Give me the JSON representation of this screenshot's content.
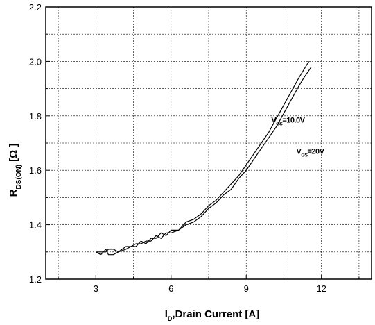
{
  "chart_data": {
    "type": "line",
    "xlabel_main": "I",
    "xlabel_sub": "D",
    "xlabel_rest": ",Drain Current [A]",
    "ylabel_main": "R",
    "ylabel_sub": "DS(ON)",
    "ylabel_rest": " [Ω ]",
    "xlim": [
      1,
      14
    ],
    "ylim": [
      1.2,
      2.2
    ],
    "x_ticks": [
      3,
      6,
      9,
      12
    ],
    "x_tick_labels": [
      "3",
      "6",
      "9",
      "12"
    ],
    "y_ticks": [
      1.2,
      1.4,
      1.6,
      1.8,
      2.0,
      2.2
    ],
    "y_tick_labels": [
      "1.2",
      "1.4",
      "1.6",
      "1.8",
      "2.0",
      "2.2"
    ],
    "grid": true,
    "series": [
      {
        "name": "",
        "values_x": [
          3.0,
          3.2,
          3.4,
          3.5,
          3.7,
          3.9,
          4.2,
          4.4,
          4.6,
          4.8,
          5.0,
          5.2,
          5.4,
          5.6,
          5.8,
          6.0,
          6.3,
          6.6,
          6.9,
          7.2,
          7.5,
          7.8,
          8.1,
          8.4,
          8.7,
          9.0,
          9.3,
          9.6,
          9.9,
          10.2,
          10.5,
          10.8,
          11.1,
          11.3,
          11.5
        ],
        "values_y": [
          1.3,
          1.3,
          1.3,
          1.31,
          1.31,
          1.3,
          1.32,
          1.32,
          1.33,
          1.33,
          1.34,
          1.34,
          1.36,
          1.35,
          1.37,
          1.37,
          1.38,
          1.41,
          1.42,
          1.44,
          1.47,
          1.49,
          1.52,
          1.55,
          1.58,
          1.62,
          1.66,
          1.7,
          1.74,
          1.79,
          1.84,
          1.89,
          1.94,
          1.97,
          2.0
        ]
      },
      {
        "name": "",
        "values_x": [
          3.0,
          3.2,
          3.4,
          3.5,
          3.7,
          3.9,
          4.2,
          4.4,
          4.6,
          4.8,
          5.0,
          5.2,
          5.4,
          5.6,
          5.8,
          6.0,
          6.3,
          6.6,
          6.9,
          7.2,
          7.5,
          7.8,
          8.1,
          8.4,
          8.7,
          9.0,
          9.3,
          9.6,
          9.9,
          10.2,
          10.5,
          10.8,
          11.1,
          11.3,
          11.6
        ],
        "values_y": [
          1.3,
          1.29,
          1.31,
          1.29,
          1.29,
          1.3,
          1.31,
          1.32,
          1.32,
          1.34,
          1.33,
          1.35,
          1.35,
          1.37,
          1.36,
          1.38,
          1.38,
          1.4,
          1.41,
          1.43,
          1.46,
          1.48,
          1.51,
          1.53,
          1.57,
          1.6,
          1.64,
          1.68,
          1.72,
          1.76,
          1.81,
          1.86,
          1.91,
          1.94,
          1.98
        ]
      }
    ],
    "annotations": [
      {
        "main": "V",
        "sub": "GS",
        "rest": "=10.0V",
        "x": 10.0,
        "y": 1.775
      },
      {
        "main": "V",
        "sub": "GS",
        "rest": "=20V",
        "x": 11.0,
        "y": 1.66
      }
    ]
  }
}
